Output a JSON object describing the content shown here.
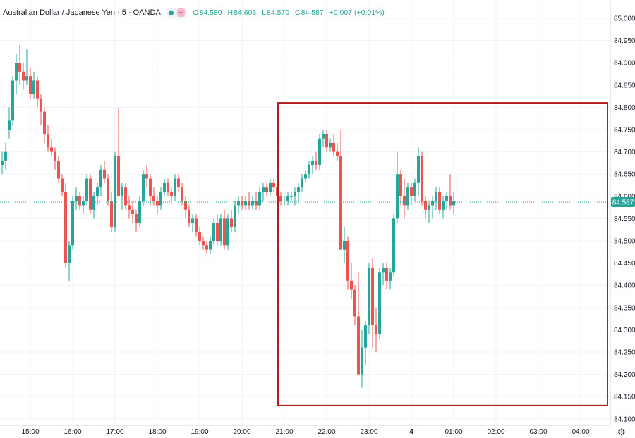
{
  "header": {
    "title": "Australian Dollar / Japanese Yen · 5 · OANDA",
    "wave_glyph": "≈",
    "ohlc": {
      "open_label": "O",
      "open": "84.580",
      "high_label": "H",
      "high": "84.603",
      "low_label": "L",
      "low": "84.570",
      "close_label": "C",
      "close": "84.587",
      "change": "+0.007 (+0.01%)"
    }
  },
  "colors": {
    "up": "#26a69a",
    "down": "#ef5350",
    "highlight_box": "#b71c1c",
    "grid": "#f0f3fa",
    "price_badge": "#26a69a"
  },
  "icons": {
    "settings": "gear-icon"
  },
  "chart_data": {
    "type": "candlestick",
    "symbol": "AUD/JPY",
    "interval": "5",
    "ylim": [
      84.13,
      85.02
    ],
    "y_ticks": [
      "85.000",
      "84.950",
      "84.900",
      "84.850",
      "84.800",
      "84.750",
      "84.700",
      "84.650",
      "84.600",
      "84.550",
      "84.500",
      "84.450",
      "84.400",
      "84.350",
      "84.300",
      "84.250",
      "84.200",
      "84.150",
      "84.100"
    ],
    "x_ticks": [
      "15:00",
      "16:00",
      "17:00",
      "18:00",
      "19:00",
      "20:00",
      "21:00",
      "22:00",
      "23:00",
      "4",
      "01:00",
      "02:00",
      "03:00",
      "04:00"
    ],
    "last_price": "84.587",
    "grid": true,
    "highlight_region": {
      "from": "20:55",
      "to": "04:25",
      "low": 84.13,
      "high": 84.81
    },
    "candles": [
      {
        "t": "14:20",
        "o": 84.67,
        "h": 84.7,
        "l": 84.65,
        "c": 84.68
      },
      {
        "t": "14:25",
        "o": 84.68,
        "h": 84.72,
        "l": 84.66,
        "c": 84.7
      },
      {
        "t": "14:30",
        "o": 84.75,
        "h": 84.8,
        "l": 84.73,
        "c": 84.77
      },
      {
        "t": "14:35",
        "o": 84.77,
        "h": 84.87,
        "l": 84.76,
        "c": 84.86
      },
      {
        "t": "14:40",
        "o": 84.86,
        "h": 84.92,
        "l": 84.83,
        "c": 84.9
      },
      {
        "t": "14:45",
        "o": 84.9,
        "h": 84.94,
        "l": 84.85,
        "c": 84.88
      },
      {
        "t": "14:50",
        "o": 84.88,
        "h": 84.9,
        "l": 84.84,
        "c": 84.86
      },
      {
        "t": "14:55",
        "o": 84.86,
        "h": 84.93,
        "l": 84.85,
        "c": 84.87
      },
      {
        "t": "15:00",
        "o": 84.87,
        "h": 84.89,
        "l": 84.82,
        "c": 84.83
      },
      {
        "t": "15:05",
        "o": 84.83,
        "h": 84.88,
        "l": 84.82,
        "c": 84.86
      },
      {
        "t": "15:10",
        "o": 84.86,
        "h": 84.87,
        "l": 84.8,
        "c": 84.82
      },
      {
        "t": "15:15",
        "o": 84.82,
        "h": 84.83,
        "l": 84.76,
        "c": 84.79
      },
      {
        "t": "15:20",
        "o": 84.79,
        "h": 84.8,
        "l": 84.72,
        "c": 84.74
      },
      {
        "t": "15:25",
        "o": 84.74,
        "h": 84.76,
        "l": 84.7,
        "c": 84.71
      },
      {
        "t": "15:30",
        "o": 84.71,
        "h": 84.73,
        "l": 84.69,
        "c": 84.7
      },
      {
        "t": "15:35",
        "o": 84.7,
        "h": 84.71,
        "l": 84.66,
        "c": 84.68
      },
      {
        "t": "15:40",
        "o": 84.68,
        "h": 84.69,
        "l": 84.63,
        "c": 84.64
      },
      {
        "t": "15:45",
        "o": 84.64,
        "h": 84.65,
        "l": 84.6,
        "c": 84.61
      },
      {
        "t": "15:50",
        "o": 84.61,
        "h": 84.63,
        "l": 84.44,
        "c": 84.45
      },
      {
        "t": "15:55",
        "o": 84.45,
        "h": 84.5,
        "l": 84.41,
        "c": 84.49
      },
      {
        "t": "16:00",
        "o": 84.49,
        "h": 84.6,
        "l": 84.48,
        "c": 84.59
      },
      {
        "t": "16:05",
        "o": 84.59,
        "h": 84.62,
        "l": 84.57,
        "c": 84.6
      },
      {
        "t": "16:10",
        "o": 84.6,
        "h": 84.61,
        "l": 84.57,
        "c": 84.58
      },
      {
        "t": "16:15",
        "o": 84.58,
        "h": 84.6,
        "l": 84.56,
        "c": 84.59
      },
      {
        "t": "16:20",
        "o": 84.59,
        "h": 84.65,
        "l": 84.58,
        "c": 84.64
      },
      {
        "t": "16:25",
        "o": 84.64,
        "h": 84.65,
        "l": 84.56,
        "c": 84.57
      },
      {
        "t": "16:30",
        "o": 84.57,
        "h": 84.61,
        "l": 84.55,
        "c": 84.6
      },
      {
        "t": "16:35",
        "o": 84.6,
        "h": 84.63,
        "l": 84.58,
        "c": 84.62
      },
      {
        "t": "16:40",
        "o": 84.62,
        "h": 84.67,
        "l": 84.6,
        "c": 84.66
      },
      {
        "t": "16:45",
        "o": 84.66,
        "h": 84.68,
        "l": 84.63,
        "c": 84.64
      },
      {
        "t": "16:50",
        "o": 84.64,
        "h": 84.65,
        "l": 84.58,
        "c": 84.59
      },
      {
        "t": "16:55",
        "o": 84.59,
        "h": 84.61,
        "l": 84.52,
        "c": 84.53
      },
      {
        "t": "17:00",
        "o": 84.53,
        "h": 84.7,
        "l": 84.52,
        "c": 84.69
      },
      {
        "t": "17:05",
        "o": 84.69,
        "h": 84.8,
        "l": 84.6,
        "c": 84.6
      },
      {
        "t": "17:10",
        "o": 84.6,
        "h": 84.63,
        "l": 84.57,
        "c": 84.62
      },
      {
        "t": "17:15",
        "o": 84.62,
        "h": 84.63,
        "l": 84.57,
        "c": 84.58
      },
      {
        "t": "17:20",
        "o": 84.58,
        "h": 84.6,
        "l": 84.55,
        "c": 84.57
      },
      {
        "t": "17:25",
        "o": 84.57,
        "h": 84.59,
        "l": 84.54,
        "c": 84.56
      },
      {
        "t": "17:30",
        "o": 84.56,
        "h": 84.57,
        "l": 84.52,
        "c": 84.54
      },
      {
        "t": "17:35",
        "o": 84.54,
        "h": 84.6,
        "l": 84.53,
        "c": 84.59
      },
      {
        "t": "17:40",
        "o": 84.59,
        "h": 84.66,
        "l": 84.58,
        "c": 84.65
      },
      {
        "t": "17:45",
        "o": 84.65,
        "h": 84.67,
        "l": 84.62,
        "c": 84.64
      },
      {
        "t": "17:50",
        "o": 84.64,
        "h": 84.65,
        "l": 84.58,
        "c": 84.6
      },
      {
        "t": "17:55",
        "o": 84.6,
        "h": 84.62,
        "l": 84.58,
        "c": 84.59
      },
      {
        "t": "18:00",
        "o": 84.59,
        "h": 84.6,
        "l": 84.56,
        "c": 84.58
      },
      {
        "t": "18:05",
        "o": 84.58,
        "h": 84.62,
        "l": 84.57,
        "c": 84.61
      },
      {
        "t": "18:10",
        "o": 84.61,
        "h": 84.64,
        "l": 84.6,
        "c": 84.63
      },
      {
        "t": "18:15",
        "o": 84.63,
        "h": 84.64,
        "l": 84.6,
        "c": 84.61
      },
      {
        "t": "18:20",
        "o": 84.61,
        "h": 84.62,
        "l": 84.59,
        "c": 84.6
      },
      {
        "t": "18:25",
        "o": 84.6,
        "h": 84.65,
        "l": 84.59,
        "c": 84.64
      },
      {
        "t": "18:30",
        "o": 84.64,
        "h": 84.65,
        "l": 84.61,
        "c": 84.62
      },
      {
        "t": "18:35",
        "o": 84.62,
        "h": 84.63,
        "l": 84.58,
        "c": 84.59
      },
      {
        "t": "18:40",
        "o": 84.59,
        "h": 84.6,
        "l": 84.55,
        "c": 84.57
      },
      {
        "t": "18:45",
        "o": 84.57,
        "h": 84.58,
        "l": 84.53,
        "c": 84.54
      },
      {
        "t": "18:50",
        "o": 84.54,
        "h": 84.56,
        "l": 84.52,
        "c": 84.55
      },
      {
        "t": "18:55",
        "o": 84.55,
        "h": 84.56,
        "l": 84.51,
        "c": 84.52
      },
      {
        "t": "19:00",
        "o": 84.52,
        "h": 84.53,
        "l": 84.49,
        "c": 84.5
      },
      {
        "t": "19:05",
        "o": 84.5,
        "h": 84.51,
        "l": 84.48,
        "c": 84.49
      },
      {
        "t": "19:10",
        "o": 84.49,
        "h": 84.5,
        "l": 84.47,
        "c": 84.48
      },
      {
        "t": "19:15",
        "o": 84.48,
        "h": 84.51,
        "l": 84.47,
        "c": 84.5
      },
      {
        "t": "19:20",
        "o": 84.5,
        "h": 84.55,
        "l": 84.49,
        "c": 84.54
      },
      {
        "t": "19:25",
        "o": 84.54,
        "h": 84.56,
        "l": 84.49,
        "c": 84.5
      },
      {
        "t": "19:30",
        "o": 84.5,
        "h": 84.56,
        "l": 84.49,
        "c": 84.55
      },
      {
        "t": "19:35",
        "o": 84.55,
        "h": 84.57,
        "l": 84.48,
        "c": 84.49
      },
      {
        "t": "19:40",
        "o": 84.49,
        "h": 84.56,
        "l": 84.48,
        "c": 84.55
      },
      {
        "t": "19:45",
        "o": 84.55,
        "h": 84.57,
        "l": 84.52,
        "c": 84.53
      },
      {
        "t": "19:50",
        "o": 84.53,
        "h": 84.59,
        "l": 84.52,
        "c": 84.58
      },
      {
        "t": "19:55",
        "o": 84.58,
        "h": 84.6,
        "l": 84.56,
        "c": 84.59
      },
      {
        "t": "20:00",
        "o": 84.59,
        "h": 84.6,
        "l": 84.57,
        "c": 84.58
      },
      {
        "t": "20:05",
        "o": 84.58,
        "h": 84.6,
        "l": 84.57,
        "c": 84.59
      },
      {
        "t": "20:10",
        "o": 84.59,
        "h": 84.61,
        "l": 84.57,
        "c": 84.58
      },
      {
        "t": "20:15",
        "o": 84.58,
        "h": 84.6,
        "l": 84.57,
        "c": 84.59
      },
      {
        "t": "20:20",
        "o": 84.59,
        "h": 84.61,
        "l": 84.57,
        "c": 84.58
      },
      {
        "t": "20:25",
        "o": 84.58,
        "h": 84.62,
        "l": 84.57,
        "c": 84.61
      },
      {
        "t": "20:30",
        "o": 84.61,
        "h": 84.63,
        "l": 84.59,
        "c": 84.62
      },
      {
        "t": "20:35",
        "o": 84.62,
        "h": 84.63,
        "l": 84.6,
        "c": 84.61
      },
      {
        "t": "20:40",
        "o": 84.61,
        "h": 84.64,
        "l": 84.6,
        "c": 84.63
      },
      {
        "t": "20:45",
        "o": 84.63,
        "h": 84.64,
        "l": 84.61,
        "c": 84.62
      },
      {
        "t": "20:50",
        "o": 84.62,
        "h": 84.63,
        "l": 84.59,
        "c": 84.6
      },
      {
        "t": "20:55",
        "o": 84.6,
        "h": 84.61,
        "l": 84.58,
        "c": 84.59
      },
      {
        "t": "21:00",
        "o": 84.59,
        "h": 84.6,
        "l": 84.58,
        "c": 84.59
      },
      {
        "t": "21:05",
        "o": 84.59,
        "h": 84.61,
        "l": 84.58,
        "c": 84.6
      },
      {
        "t": "21:10",
        "o": 84.6,
        "h": 84.61,
        "l": 84.59,
        "c": 84.6
      },
      {
        "t": "21:15",
        "o": 84.6,
        "h": 84.62,
        "l": 84.58,
        "c": 84.61
      },
      {
        "t": "21:20",
        "o": 84.61,
        "h": 84.63,
        "l": 84.59,
        "c": 84.62
      },
      {
        "t": "21:25",
        "o": 84.62,
        "h": 84.65,
        "l": 84.61,
        "c": 84.64
      },
      {
        "t": "21:30",
        "o": 84.64,
        "h": 84.66,
        "l": 84.63,
        "c": 84.65
      },
      {
        "t": "21:35",
        "o": 84.65,
        "h": 84.68,
        "l": 84.64,
        "c": 84.67
      },
      {
        "t": "21:40",
        "o": 84.67,
        "h": 84.69,
        "l": 84.65,
        "c": 84.68
      },
      {
        "t": "21:45",
        "o": 84.68,
        "h": 84.7,
        "l": 84.66,
        "c": 84.67
      },
      {
        "t": "21:50",
        "o": 84.67,
        "h": 84.74,
        "l": 84.66,
        "c": 84.73
      },
      {
        "t": "21:55",
        "o": 84.73,
        "h": 84.75,
        "l": 84.71,
        "c": 84.74
      },
      {
        "t": "22:00",
        "o": 84.74,
        "h": 84.75,
        "l": 84.7,
        "c": 84.71
      },
      {
        "t": "22:05",
        "o": 84.71,
        "h": 84.73,
        "l": 84.7,
        "c": 84.72
      },
      {
        "t": "22:10",
        "o": 84.72,
        "h": 84.74,
        "l": 84.69,
        "c": 84.7
      },
      {
        "t": "22:15",
        "o": 84.7,
        "h": 84.72,
        "l": 84.68,
        "c": 84.69
      },
      {
        "t": "22:20",
        "o": 84.69,
        "h": 84.75,
        "l": 84.48,
        "c": 84.48
      },
      {
        "t": "22:25",
        "o": 84.48,
        "h": 84.53,
        "l": 84.45,
        "c": 84.5
      },
      {
        "t": "22:30",
        "o": 84.5,
        "h": 84.51,
        "l": 84.39,
        "c": 84.41
      },
      {
        "t": "22:35",
        "o": 84.41,
        "h": 84.45,
        "l": 84.37,
        "c": 84.39
      },
      {
        "t": "22:40",
        "o": 84.39,
        "h": 84.4,
        "l": 84.31,
        "c": 84.33
      },
      {
        "t": "22:45",
        "o": 84.33,
        "h": 84.43,
        "l": 84.2,
        "c": 84.2
      },
      {
        "t": "22:50",
        "o": 84.2,
        "h": 84.3,
        "l": 84.17,
        "c": 84.26
      },
      {
        "t": "22:55",
        "o": 84.26,
        "h": 84.32,
        "l": 84.22,
        "c": 84.31
      },
      {
        "t": "23:00",
        "o": 84.31,
        "h": 84.45,
        "l": 84.29,
        "c": 84.44
      },
      {
        "t": "23:05",
        "o": 84.44,
        "h": 84.46,
        "l": 84.26,
        "c": 84.31
      },
      {
        "t": "23:10",
        "o": 84.31,
        "h": 84.35,
        "l": 84.25,
        "c": 84.29
      },
      {
        "t": "23:15",
        "o": 84.29,
        "h": 84.44,
        "l": 84.28,
        "c": 84.43
      },
      {
        "t": "23:20",
        "o": 84.43,
        "h": 84.45,
        "l": 84.4,
        "c": 84.44
      },
      {
        "t": "23:25",
        "o": 84.44,
        "h": 84.45,
        "l": 84.39,
        "c": 84.41
      },
      {
        "t": "23:30",
        "o": 84.41,
        "h": 84.44,
        "l": 84.39,
        "c": 84.43
      },
      {
        "t": "23:35",
        "o": 84.43,
        "h": 84.56,
        "l": 84.42,
        "c": 84.55
      },
      {
        "t": "23:40",
        "o": 84.55,
        "h": 84.7,
        "l": 84.54,
        "c": 84.65
      },
      {
        "t": "23:45",
        "o": 84.65,
        "h": 84.66,
        "l": 84.58,
        "c": 84.6
      },
      {
        "t": "23:50",
        "o": 84.6,
        "h": 84.64,
        "l": 84.55,
        "c": 84.58
      },
      {
        "t": "23:55",
        "o": 84.58,
        "h": 84.63,
        "l": 84.57,
        "c": 84.62
      },
      {
        "t": "00:00",
        "o": 84.62,
        "h": 84.63,
        "l": 84.58,
        "c": 84.6
      },
      {
        "t": "00:05",
        "o": 84.6,
        "h": 84.64,
        "l": 84.59,
        "c": 84.63
      },
      {
        "t": "00:10",
        "o": 84.63,
        "h": 84.71,
        "l": 84.6,
        "c": 84.69
      },
      {
        "t": "00:15",
        "o": 84.69,
        "h": 84.7,
        "l": 84.58,
        "c": 84.59
      },
      {
        "t": "00:20",
        "o": 84.59,
        "h": 84.6,
        "l": 84.55,
        "c": 84.57
      },
      {
        "t": "00:25",
        "o": 84.57,
        "h": 84.59,
        "l": 84.54,
        "c": 84.58
      },
      {
        "t": "00:30",
        "o": 84.58,
        "h": 84.6,
        "l": 84.55,
        "c": 84.59
      },
      {
        "t": "00:35",
        "o": 84.59,
        "h": 84.62,
        "l": 84.57,
        "c": 84.61
      },
      {
        "t": "00:40",
        "o": 84.61,
        "h": 84.62,
        "l": 84.56,
        "c": 84.57
      },
      {
        "t": "00:45",
        "o": 84.57,
        "h": 84.6,
        "l": 84.55,
        "c": 84.59
      },
      {
        "t": "00:50",
        "o": 84.59,
        "h": 84.61,
        "l": 84.57,
        "c": 84.6
      },
      {
        "t": "00:55",
        "o": 84.6,
        "h": 84.65,
        "l": 84.57,
        "c": 84.58
      },
      {
        "t": "01:00",
        "o": 84.58,
        "h": 84.61,
        "l": 84.56,
        "c": 84.59
      }
    ]
  }
}
